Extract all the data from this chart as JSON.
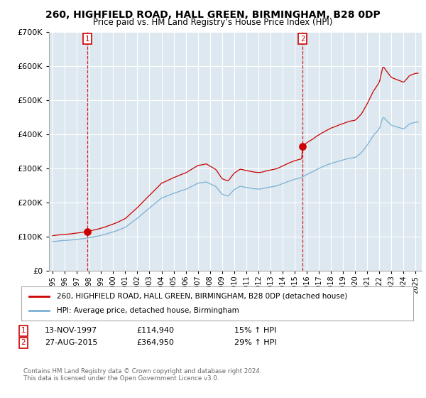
{
  "title_line1": "260, HIGHFIELD ROAD, HALL GREEN, BIRMINGHAM, B28 0DP",
  "title_line2": "Price paid vs. HM Land Registry’s House Price Index (HPI)",
  "ylim": [
    0,
    700000
  ],
  "yticks": [
    0,
    100000,
    200000,
    300000,
    400000,
    500000,
    600000,
    700000
  ],
  "ytick_labels": [
    "£0",
    "£100K",
    "£200K",
    "£300K",
    "£400K",
    "£500K",
    "£600K",
    "£700K"
  ],
  "sale1_date": 1997.87,
  "sale1_price": 114940,
  "sale2_date": 2015.65,
  "sale2_price": 364950,
  "sale1_label": "1",
  "sale2_label": "2",
  "legend_line1": "260, HIGHFIELD ROAD, HALL GREEN, BIRMINGHAM, B28 0DP (detached house)",
  "legend_line2": "HPI: Average price, detached house, Birmingham",
  "annotation1_date": "13-NOV-1997",
  "annotation1_price": "£114,940",
  "annotation1_hpi": "15% ↑ HPI",
  "annotation2_date": "27-AUG-2015",
  "annotation2_price": "£364,950",
  "annotation2_hpi": "29% ↑ HPI",
  "footer": "Contains HM Land Registry data © Crown copyright and database right 2024.\nThis data is licensed under the Open Government Licence v3.0.",
  "line_color_red": "#cc0000",
  "line_color_blue": "#7ab0d4",
  "background_color": "#ffffff",
  "chart_bg_color": "#dde8f0",
  "grid_color": "#ffffff",
  "xmin": 1994.7,
  "xmax": 2025.5
}
